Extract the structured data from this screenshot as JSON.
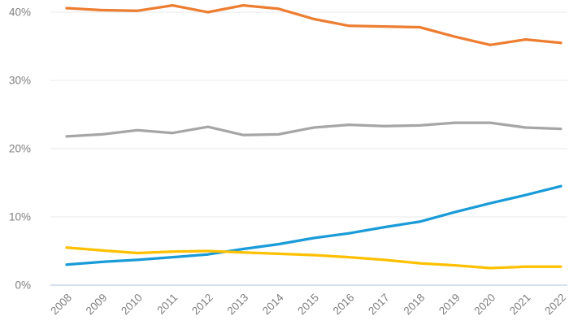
{
  "chart_data": {
    "type": "line",
    "title": "",
    "xlabel": "",
    "ylabel": "",
    "legend": "none",
    "grid": true,
    "categories": [
      "2008",
      "2009",
      "2010",
      "2011",
      "2012",
      "2013",
      "2014",
      "2015",
      "2016",
      "2017",
      "2018",
      "2019",
      "2020",
      "2021",
      "2022"
    ],
    "series": [
      {
        "name": "orange-series",
        "color": "#ED7D31",
        "values": [
          40.6,
          40.3,
          40.2,
          41.0,
          40.0,
          41.0,
          40.5,
          39.0,
          38.0,
          37.9,
          37.8,
          36.4,
          35.2,
          36.0,
          35.5
        ]
      },
      {
        "name": "gray-series",
        "color": "#A6A6A6",
        "values": [
          21.8,
          22.1,
          22.7,
          22.3,
          23.2,
          22.0,
          22.1,
          23.1,
          23.5,
          23.3,
          23.4,
          23.8,
          23.8,
          23.1,
          22.9
        ]
      },
      {
        "name": "blue-series",
        "color": "#189BD8",
        "values": [
          3.0,
          3.4,
          3.7,
          4.1,
          4.5,
          5.3,
          6.0,
          6.9,
          7.6,
          8.5,
          9.3,
          10.7,
          12.0,
          13.2,
          14.5
        ]
      },
      {
        "name": "yellow-series",
        "color": "#FFC000",
        "values": [
          5.5,
          5.1,
          4.7,
          4.9,
          5.0,
          4.8,
          4.6,
          4.4,
          4.1,
          3.7,
          3.2,
          2.9,
          2.5,
          2.7,
          2.7
        ]
      }
    ],
    "ylim": [
      0,
      41.8
    ],
    "y_ticks": [
      "0%",
      "10%",
      "20%",
      "30%",
      "40%"
    ],
    "y_tick_values": [
      0,
      10,
      20,
      30,
      40
    ],
    "axis_line_color": "#CCD5EA",
    "grid_line_color": "#E9E9E9",
    "tick_label_color": "#7F7F7F"
  }
}
